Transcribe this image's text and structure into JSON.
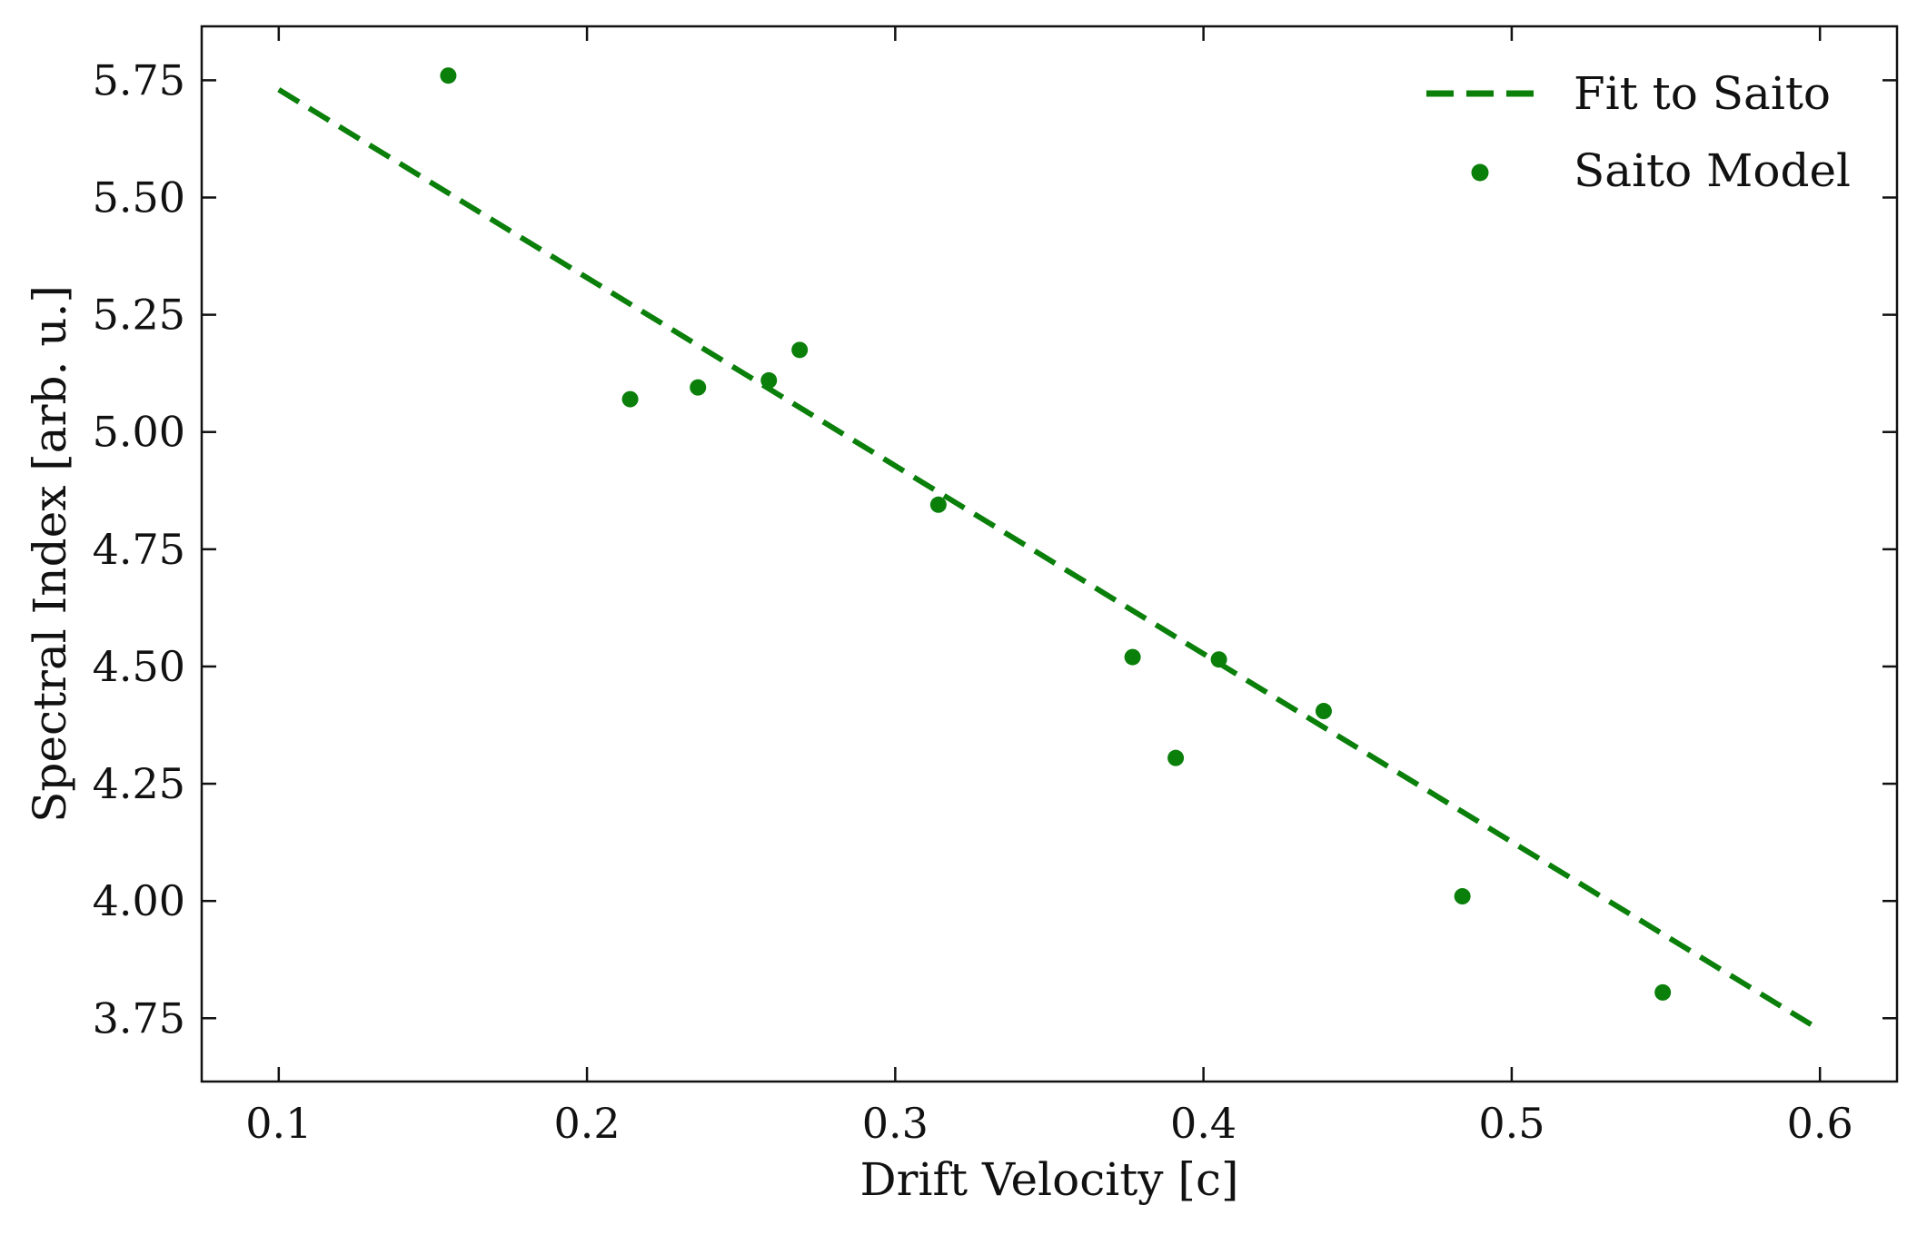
{
  "colors": {
    "series": "#0a7f0a",
    "axis": "#111111",
    "background": "#ffffff"
  },
  "chart_data": {
    "type": "scatter",
    "title": "",
    "xlabel": "Drift Velocity [c]",
    "ylabel": "Spectral Index [arb. u.]",
    "xlim": [
      0.075,
      0.625
    ],
    "ylim": [
      3.615,
      5.865
    ],
    "xticks": [
      0.1,
      0.2,
      0.3,
      0.4,
      0.5,
      0.6
    ],
    "xtick_labels": [
      "0.1",
      "0.2",
      "0.3",
      "0.4",
      "0.5",
      "0.6"
    ],
    "yticks": [
      3.75,
      4.0,
      4.25,
      4.5,
      4.75,
      5.0,
      5.25,
      5.5,
      5.75
    ],
    "ytick_labels": [
      "3.75",
      "4.00",
      "4.25",
      "4.50",
      "4.75",
      "5.00",
      "5.25",
      "5.50",
      "5.75"
    ],
    "grid": false,
    "legend_position": "top-right",
    "series": [
      {
        "name": "Fit to Saito",
        "kind": "line",
        "style": "dashed",
        "color": "#0a7f0a",
        "x": [
          0.1,
          0.6
        ],
        "y": [
          5.73,
          3.725
        ]
      },
      {
        "name": "Saito Model",
        "kind": "scatter",
        "color": "#0a7f0a",
        "x": [
          0.155,
          0.214,
          0.236,
          0.259,
          0.269,
          0.314,
          0.377,
          0.391,
          0.405,
          0.439,
          0.484,
          0.549
        ],
        "y": [
          5.76,
          5.07,
          5.095,
          5.11,
          5.175,
          4.845,
          4.52,
          4.305,
          4.515,
          4.405,
          4.01,
          3.805
        ]
      }
    ]
  }
}
